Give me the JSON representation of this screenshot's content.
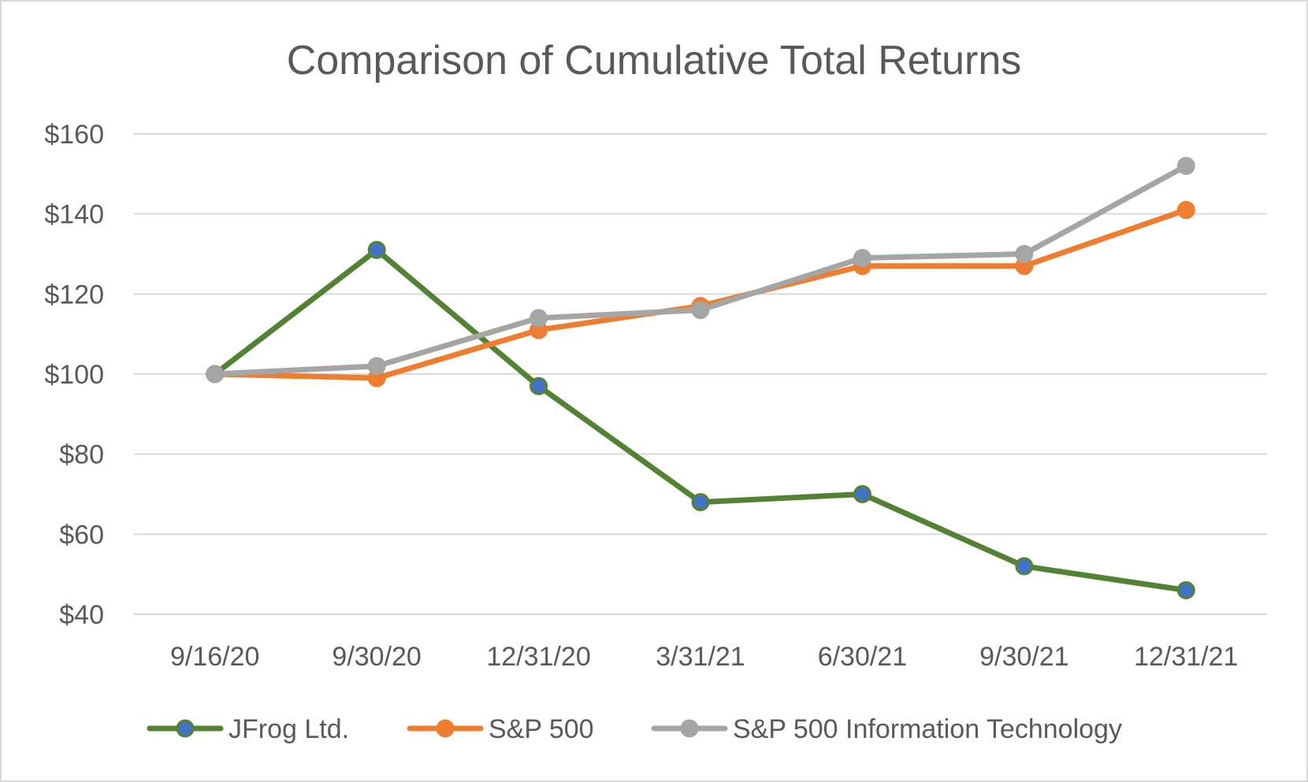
{
  "chart_data": {
    "type": "line",
    "title": "Comparison of Cumulative Total Returns",
    "xlabel": "",
    "ylabel": "",
    "categories": [
      "9/16/20",
      "9/30/20",
      "12/31/20",
      "3/31/21",
      "6/30/21",
      "9/30/21",
      "12/31/21"
    ],
    "ylim": [
      40,
      160
    ],
    "yticks": [
      40,
      60,
      80,
      100,
      120,
      140,
      160
    ],
    "ytick_labels": [
      "$40",
      "$60",
      "$80",
      "$100",
      "$120",
      "$140",
      "$160"
    ],
    "grid": true,
    "legend_position": "bottom",
    "series": [
      {
        "name": "JFrog Ltd.",
        "values": [
          100,
          131,
          97,
          68,
          70,
          52,
          46
        ],
        "color": "#548235",
        "marker_color": "#4472c4"
      },
      {
        "name": "S&P 500",
        "values": [
          100,
          99,
          111,
          117,
          127,
          127,
          141
        ],
        "color": "#ed7d31",
        "marker_color": "#ed7d31"
      },
      {
        "name": "S&P 500 Information Technology",
        "values": [
          100,
          102,
          114,
          116,
          129,
          130,
          152
        ],
        "color": "#a5a5a5",
        "marker_color": "#a5a5a5"
      }
    ]
  }
}
